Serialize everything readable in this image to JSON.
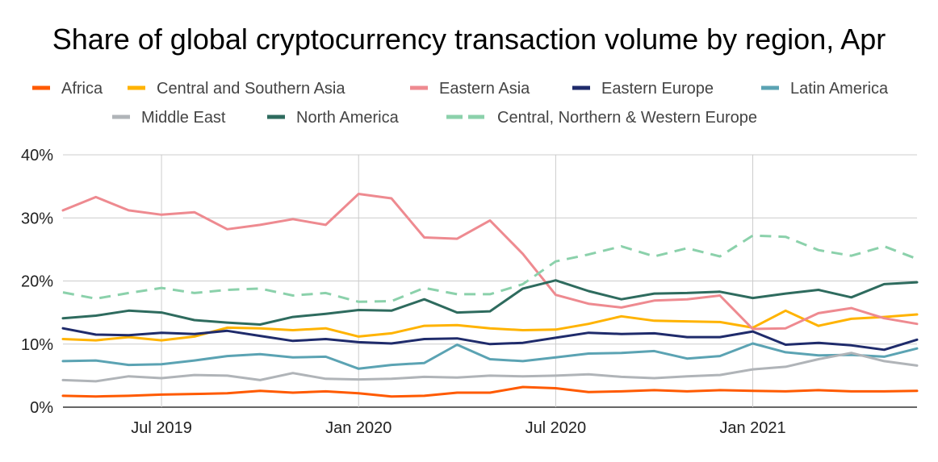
{
  "chart_data": {
    "type": "line",
    "title": "Share of global cryptocurrency transaction volume by region, Apr",
    "xlabel": "",
    "ylabel": "",
    "x": [
      "2019-04",
      "2019-05",
      "2019-06",
      "2019-07",
      "2019-08",
      "2019-09",
      "2019-10",
      "2019-11",
      "2019-12",
      "2020-01",
      "2020-02",
      "2020-03",
      "2020-04",
      "2020-05",
      "2020-06",
      "2020-07",
      "2020-08",
      "2020-09",
      "2020-10",
      "2020-11",
      "2020-12",
      "2021-01",
      "2021-02",
      "2021-03",
      "2021-04",
      "2021-05",
      "2021-06"
    ],
    "x_ticks": [
      {
        "x": "2019-07",
        "label": "Jul 2019"
      },
      {
        "x": "2020-01",
        "label": "Jan 2020"
      },
      {
        "x": "2020-07",
        "label": "Jul 2020"
      },
      {
        "x": "2021-01",
        "label": "Jan 2021"
      }
    ],
    "ylim": [
      0,
      40
    ],
    "y_ticks": [
      {
        "value": 0,
        "label": "0%"
      },
      {
        "value": 10,
        "label": "10%"
      },
      {
        "value": 20,
        "label": "20%"
      },
      {
        "value": 30,
        "label": "30%"
      },
      {
        "value": 40,
        "label": "40%"
      }
    ],
    "grid": true,
    "legend_position": "top",
    "series": [
      {
        "name": "Africa",
        "color": "#ff5a00",
        "dashed": false,
        "values": [
          1.8,
          1.7,
          1.8,
          2.0,
          2.1,
          2.2,
          2.6,
          2.3,
          2.5,
          2.2,
          1.7,
          1.8,
          2.3,
          2.3,
          3.2,
          3.0,
          2.4,
          2.5,
          2.7,
          2.5,
          2.7,
          2.6,
          2.5,
          2.7,
          2.5,
          2.5,
          2.6
        ]
      },
      {
        "name": "Central and Southern Asia",
        "color": "#ffb300",
        "dashed": false,
        "values": [
          10.8,
          10.6,
          11.1,
          10.6,
          11.2,
          12.6,
          12.5,
          12.2,
          12.5,
          11.2,
          11.7,
          12.9,
          13.0,
          12.5,
          12.2,
          12.3,
          13.2,
          14.4,
          13.7,
          13.6,
          13.5,
          12.6,
          15.3,
          12.9,
          14.0,
          14.3,
          14.7
        ]
      },
      {
        "name": "Eastern Asia",
        "color": "#ee8a90",
        "dashed": false,
        "values": [
          31.2,
          33.3,
          31.2,
          30.5,
          30.9,
          28.2,
          28.9,
          29.8,
          28.9,
          33.8,
          33.1,
          26.9,
          26.7,
          29.6,
          24.3,
          17.8,
          16.4,
          15.8,
          16.9,
          17.1,
          17.7,
          12.4,
          12.5,
          14.9,
          15.7,
          14.1,
          13.2
        ]
      },
      {
        "name": "Eastern Europe",
        "color": "#1f2b6b",
        "dashed": false,
        "values": [
          12.5,
          11.5,
          11.4,
          11.8,
          11.6,
          12.1,
          11.3,
          10.5,
          10.8,
          10.3,
          10.1,
          10.8,
          10.9,
          10.0,
          10.2,
          11.0,
          11.8,
          11.6,
          11.7,
          11.1,
          11.1,
          12.0,
          9.9,
          10.2,
          9.8,
          9.1,
          10.7
        ]
      },
      {
        "name": "Latin America",
        "color": "#5ba3b3",
        "dashed": false,
        "values": [
          7.3,
          7.4,
          6.7,
          6.8,
          7.4,
          8.1,
          8.4,
          7.9,
          8.0,
          6.1,
          6.7,
          7.0,
          9.9,
          7.6,
          7.3,
          7.9,
          8.5,
          8.6,
          8.9,
          7.7,
          8.1,
          10.1,
          8.7,
          8.2,
          8.3,
          8.0,
          9.3
        ]
      },
      {
        "name": "Middle East",
        "color": "#b0b4b8",
        "dashed": false,
        "values": [
          4.3,
          4.1,
          4.9,
          4.6,
          5.1,
          5.0,
          4.3,
          5.4,
          4.5,
          4.4,
          4.5,
          4.8,
          4.7,
          5.0,
          4.9,
          5.0,
          5.2,
          4.8,
          4.6,
          4.9,
          5.1,
          6.0,
          6.4,
          7.6,
          8.6,
          7.3,
          6.6
        ]
      },
      {
        "name": "North America",
        "color": "#2e6b5e",
        "dashed": false,
        "values": [
          14.1,
          14.5,
          15.3,
          15.0,
          13.8,
          13.4,
          13.1,
          14.3,
          14.8,
          15.4,
          15.3,
          17.1,
          15.0,
          15.2,
          18.8,
          20.1,
          18.4,
          17.1,
          18.0,
          18.1,
          18.3,
          17.3,
          18.0,
          18.6,
          17.4,
          19.5,
          19.8
        ]
      },
      {
        "name": "Central, Northern & Western Europe",
        "color": "#8bd1ab",
        "dashed": true,
        "values": [
          18.2,
          17.2,
          18.1,
          18.9,
          18.1,
          18.6,
          18.8,
          17.7,
          18.1,
          16.7,
          16.8,
          18.9,
          17.9,
          17.9,
          19.5,
          23.1,
          24.2,
          25.5,
          23.9,
          25.2,
          23.9,
          27.2,
          27.0,
          24.9,
          24.0,
          25.5,
          23.5
        ]
      }
    ]
  }
}
